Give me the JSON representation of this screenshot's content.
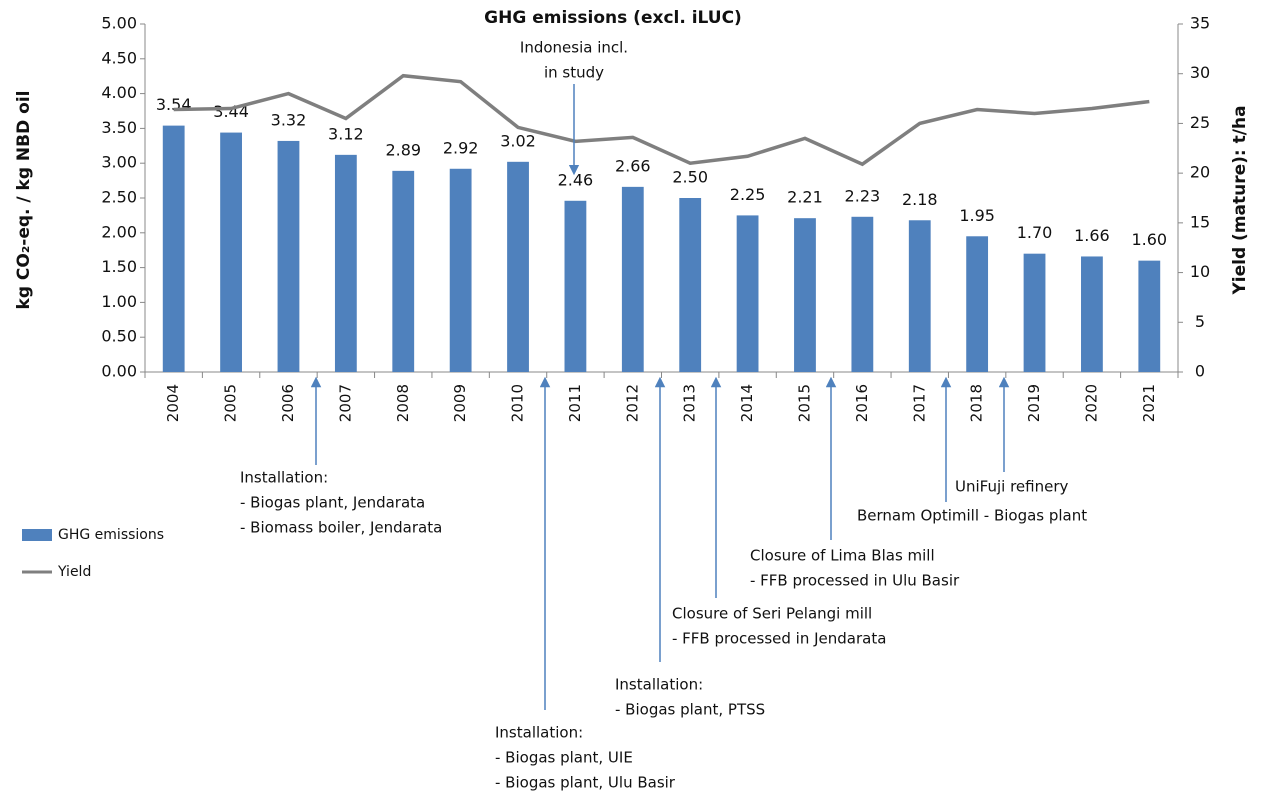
{
  "chart_data": {
    "type": "bar_line",
    "title": "GHG emissions (excl. iLUC)",
    "y_label": "kg CO₂-eq. / kg NBD oil",
    "y2_label": "Yield (mature): t/ha",
    "categories": [
      "2004",
      "2005",
      "2006",
      "2007",
      "2008",
      "2009",
      "2010",
      "2011",
      "2012",
      "2013",
      "2014",
      "2015",
      "2016",
      "2017",
      "2018",
      "2019",
      "2020",
      "2021"
    ],
    "series": [
      {
        "name": "GHG emissions",
        "type": "bar",
        "color": "#4f81bd",
        "values": [
          3.54,
          3.44,
          3.32,
          3.12,
          2.89,
          2.92,
          3.02,
          2.46,
          2.66,
          2.5,
          2.25,
          2.21,
          2.23,
          2.18,
          1.95,
          1.7,
          1.66,
          1.6
        ],
        "value_labels": [
          "3.54",
          "3.44",
          "3.32",
          "3.12",
          "2.89",
          "2.92",
          "3.02",
          "2.46",
          "2.66",
          "2.50",
          "2.25",
          "2.21",
          "2.23",
          "2.18",
          "1.95",
          "1.70",
          "1.66",
          "1.60"
        ]
      },
      {
        "name": "Yield",
        "type": "line",
        "color": "#7f7f7f",
        "axis": "y2",
        "values": [
          26.4,
          26.5,
          28.0,
          25.5,
          29.8,
          29.2,
          24.6,
          23.2,
          23.6,
          21.0,
          21.7,
          23.5,
          20.9,
          25.0,
          26.4,
          26.0,
          26.5,
          27.2
        ]
      }
    ],
    "ylim": [
      0,
      5
    ],
    "yticks": [
      {
        "value": 0,
        "label": "0.00"
      },
      {
        "value": 0.5,
        "label": "0.50"
      },
      {
        "value": 1,
        "label": "1.00"
      },
      {
        "value": 1.5,
        "label": "1.50"
      },
      {
        "value": 2,
        "label": "2.00"
      },
      {
        "value": 2.5,
        "label": "2.50"
      },
      {
        "value": 3,
        "label": "3.00"
      },
      {
        "value": 3.5,
        "label": "3.50"
      },
      {
        "value": 4,
        "label": "4.00"
      },
      {
        "value": 4.5,
        "label": "4.50"
      },
      {
        "value": 5,
        "label": "5.00"
      }
    ],
    "y2lim": [
      0,
      35
    ],
    "y2ticks": [
      0,
      5,
      10,
      15,
      20,
      25,
      30,
      35
    ],
    "legend": "left",
    "annotations": [
      {
        "lines": [
          "Indonesia incl.",
          "in study"
        ]
      },
      {
        "lines": [
          "Installation:",
          "- Biogas plant, Jendarata",
          "- Biomass boiler, Jendarata"
        ]
      },
      {
        "lines": [
          "Installation:",
          "- Biogas plant, UIE",
          "- Biogas plant, Ulu Basir"
        ]
      },
      {
        "lines": [
          "Installation:",
          "- Biogas plant, PTSS"
        ]
      },
      {
        "lines": [
          "Closure of Seri Pelangi mill",
          "- FFB processed in Jendarata"
        ]
      },
      {
        "lines": [
          "Closure of Lima Blas mill",
          "- FFB processed in Ulu Basir"
        ]
      },
      {
        "lines": [
          "Bernam Optimill - Biogas plant"
        ]
      },
      {
        "lines": [
          "UniFuji refinery"
        ]
      }
    ]
  }
}
